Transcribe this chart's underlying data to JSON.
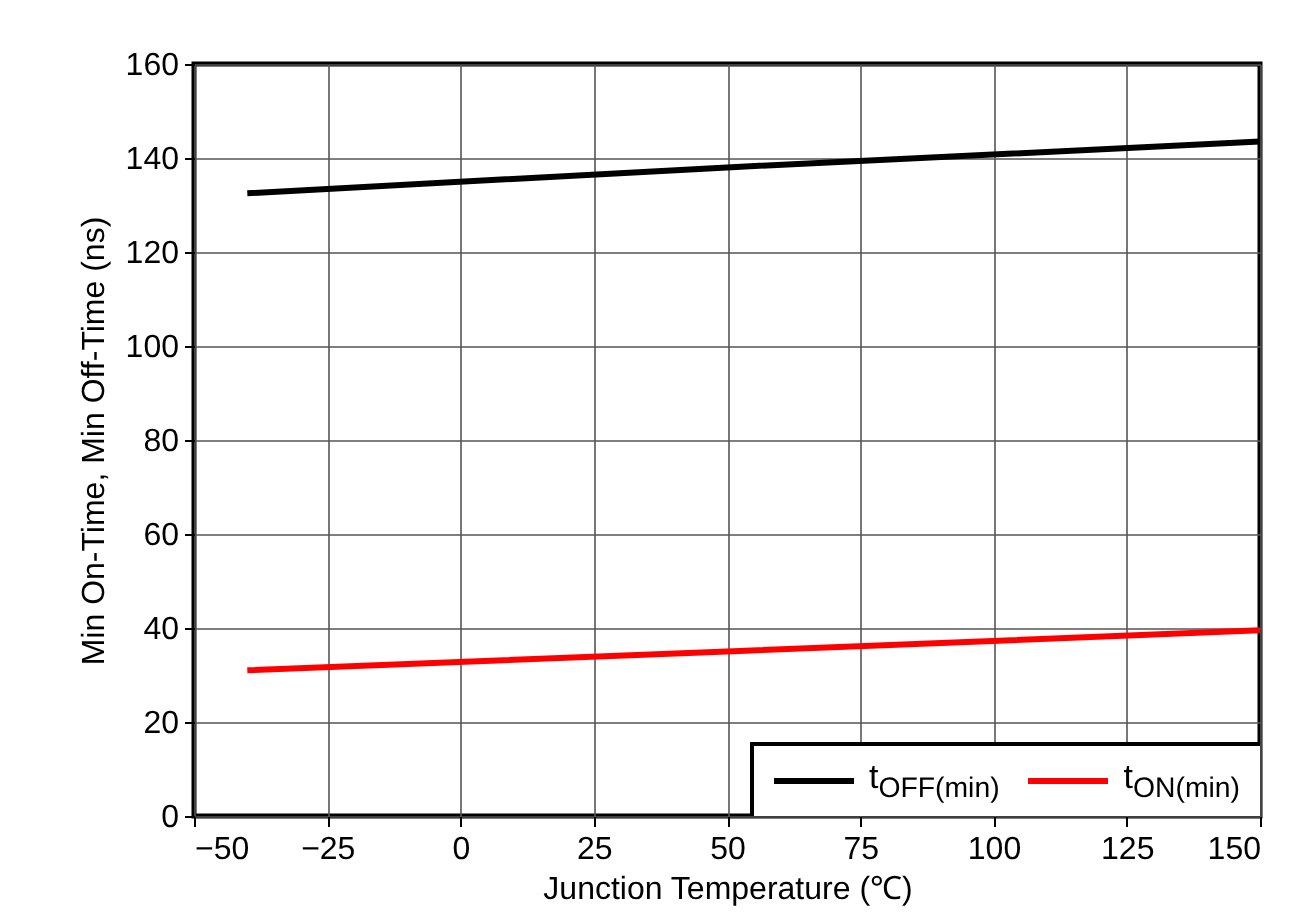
{
  "chart_data": {
    "type": "line",
    "xlabel": "Junction Temperature (℃)",
    "ylabel": "Min On-Time, Min Off-Time (ns)",
    "x": [
      -40,
      50,
      150
    ],
    "series": [
      {
        "name": "t$_{OFF(min)}$",
        "color": "#000000",
        "values": [
          132.5,
          138,
          143.5
        ]
      },
      {
        "name": "t$_{ON(min)}$",
        "color": "#ff0000",
        "values": [
          31,
          35,
          39.5
        ]
      }
    ],
    "xlim": [
      -50,
      150
    ],
    "xticks": [
      -50,
      -25,
      0,
      25,
      50,
      75,
      100,
      125,
      150
    ],
    "ylim": [
      0,
      160
    ],
    "yticks": [
      0,
      20,
      40,
      60,
      80,
      100,
      120,
      140,
      160
    ],
    "grid": true,
    "legend": "bottom right"
  }
}
